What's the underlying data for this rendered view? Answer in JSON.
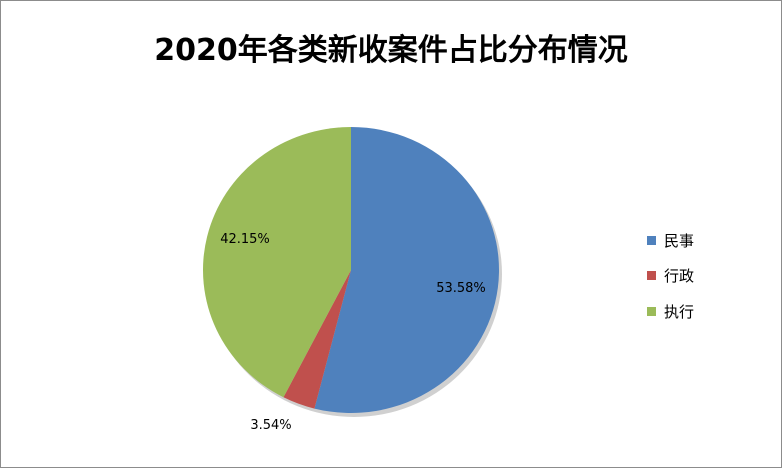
{
  "chart_data": {
    "type": "pie",
    "title": "2020年各类新收案件占比分布情况",
    "categories": [
      "民事",
      "行政",
      "执行"
    ],
    "values": [
      53.58,
      3.54,
      42.15
    ],
    "data_labels": [
      "53.58%",
      "3.54%",
      "42.15%"
    ],
    "colors": [
      "#4F81BD",
      "#C0504D",
      "#9BBB59"
    ],
    "start_angle": "top",
    "direction": "clockwise",
    "legend_position": "right"
  }
}
